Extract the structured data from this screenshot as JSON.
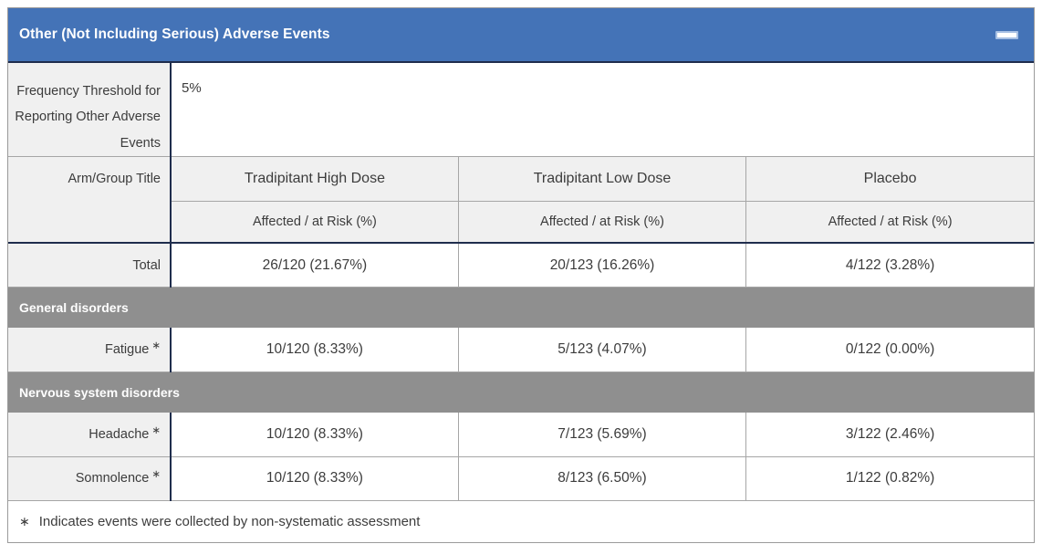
{
  "header": {
    "title": "Other (Not Including Serious) Adverse Events"
  },
  "frequency_row": {
    "label": "Frequency Threshold for Reporting Other Adverse Events",
    "value": "5%"
  },
  "arm_header": {
    "label": "Arm/Group Title",
    "groups": [
      "Tradipitant High Dose",
      "Tradipitant Low Dose",
      "Placebo"
    ],
    "sub_labels": [
      "Affected / at Risk (%)",
      "Affected / at Risk (%)",
      "Affected / at Risk (%)"
    ]
  },
  "total_row": {
    "label": "Total",
    "values": [
      "26/120 (21.67%)",
      "20/123 (16.26%)",
      "4/122 (3.28%)"
    ]
  },
  "sections": [
    {
      "name": "General disorders",
      "rows": [
        {
          "label": "Fatigue",
          "marker": "∗",
          "values": [
            "10/120 (8.33%)",
            "5/123 (4.07%)",
            "0/122 (0.00%)"
          ]
        }
      ]
    },
    {
      "name": "Nervous system disorders",
      "rows": [
        {
          "label": "Headache",
          "marker": "∗",
          "values": [
            "10/120 (8.33%)",
            "7/123 (5.69%)",
            "3/122 (2.46%)"
          ]
        },
        {
          "label": "Somnolence",
          "marker": "∗",
          "values": [
            "10/120 (8.33%)",
            "8/123 (6.50%)",
            "1/122 (0.82%)"
          ]
        }
      ]
    }
  ],
  "footnote": {
    "marker": "∗",
    "text": "Indicates events were collected by non-systematic assessment"
  },
  "colors": {
    "header_blue": "#4473b7",
    "divider_navy": "#1f2d4d",
    "band_gray": "#8f8f8f",
    "label_bg": "#f0f0f0",
    "border_gray": "#a6a6a6",
    "text": "#3c3c3c"
  }
}
